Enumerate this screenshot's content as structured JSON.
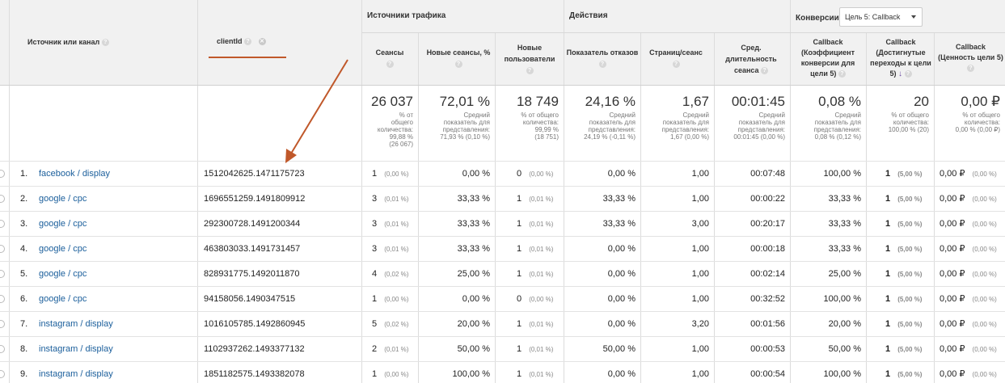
{
  "header": {
    "dim1": "Источник или канал",
    "dim2": "clientId",
    "group_traffic": "Источники трафика",
    "group_actions": "Действия",
    "group_conversions": "Конверсии",
    "goal_select": "Цель 5: Callback",
    "help": "?",
    "col_sessions": "Сеансы",
    "col_new_sessions": "Новые сеансы, %",
    "col_new_users": "Новые пользователи",
    "col_bounce": "Показатель отказов",
    "col_pages": "Страниц/сеанс",
    "col_duration": "Сред. длительность сеанса",
    "col_cb_rate": "Callback (Коэффициент конверсии для цели 5)",
    "col_cb_completions": "Callback (Достигнутые переходы к цели 5)",
    "col_cb_value": "Callback (Ценность цели 5)"
  },
  "totals": [
    {
      "main": "26 037",
      "sub": [
        "% от",
        "общего",
        "количества:",
        "99,88 %",
        "(26 067)"
      ]
    },
    {
      "main": "72,01 %",
      "sub": [
        "Средний",
        "показатель для",
        "представления:",
        "71,93 % (0,10 %)"
      ]
    },
    {
      "main": "18 749",
      "sub": [
        "% от общего",
        "количества:",
        "99,99 %",
        "(18 751)"
      ]
    },
    {
      "main": "24,16 %",
      "sub": [
        "Средний",
        "показатель для",
        "представления:",
        "24,19 % (-0,11 %)"
      ]
    },
    {
      "main": "1,67",
      "sub": [
        "Средний",
        "показатель для",
        "представления:",
        "1,67 (0,00 %)"
      ]
    },
    {
      "main": "00:01:45",
      "sub": [
        "Средний",
        "показатель для",
        "представления:",
        "00:01:45 (0,00 %)"
      ]
    },
    {
      "main": "0,08 %",
      "sub": [
        "Средний",
        "показатель для",
        "представления:",
        "0,08 % (0,12 %)"
      ]
    },
    {
      "main": "20",
      "sub": [
        "% от общего",
        "количества:",
        "100,00 % (20)"
      ]
    },
    {
      "main": "0,00 ₽",
      "sub": [
        "% от общего",
        "количества:",
        "0,00 % (0,00 ₽)"
      ]
    }
  ],
  "rows": [
    {
      "n": "1.",
      "source": "facebook / display",
      "client": "1512042625.1471175723",
      "sessions": "1",
      "sessions_pct": "(0,00 %)",
      "new_sess": "0,00 %",
      "new_users": "0",
      "new_users_pct": "(0,00 %)",
      "bounce": "0,00 %",
      "pages": "1,00",
      "duration": "00:07:48",
      "cb_rate": "100,00 %",
      "cb": "1",
      "cb_pct": "(5,00 %)",
      "val": "0,00 ₽",
      "val_pct": "(0,00 %)"
    },
    {
      "n": "2.",
      "source": "google / cpc",
      "client": "1696551259.1491809912",
      "sessions": "3",
      "sessions_pct": "(0,01 %)",
      "new_sess": "33,33 %",
      "new_users": "1",
      "new_users_pct": "(0,01 %)",
      "bounce": "33,33 %",
      "pages": "1,00",
      "duration": "00:00:22",
      "cb_rate": "33,33 %",
      "cb": "1",
      "cb_pct": "(5,00 %)",
      "val": "0,00 ₽",
      "val_pct": "(0,00 %)"
    },
    {
      "n": "3.",
      "source": "google / cpc",
      "client": "292300728.1491200344",
      "sessions": "3",
      "sessions_pct": "(0,01 %)",
      "new_sess": "33,33 %",
      "new_users": "1",
      "new_users_pct": "(0,01 %)",
      "bounce": "33,33 %",
      "pages": "3,00",
      "duration": "00:20:17",
      "cb_rate": "33,33 %",
      "cb": "1",
      "cb_pct": "(5,00 %)",
      "val": "0,00 ₽",
      "val_pct": "(0,00 %)"
    },
    {
      "n": "4.",
      "source": "google / cpc",
      "client": "463803033.1491731457",
      "sessions": "3",
      "sessions_pct": "(0,01 %)",
      "new_sess": "33,33 %",
      "new_users": "1",
      "new_users_pct": "(0,01 %)",
      "bounce": "0,00 %",
      "pages": "1,00",
      "duration": "00:00:18",
      "cb_rate": "33,33 %",
      "cb": "1",
      "cb_pct": "(5,00 %)",
      "val": "0,00 ₽",
      "val_pct": "(0,00 %)"
    },
    {
      "n": "5.",
      "source": "google / cpc",
      "client": "828931775.1492011870",
      "sessions": "4",
      "sessions_pct": "(0,02 %)",
      "new_sess": "25,00 %",
      "new_users": "1",
      "new_users_pct": "(0,01 %)",
      "bounce": "0,00 %",
      "pages": "1,00",
      "duration": "00:02:14",
      "cb_rate": "25,00 %",
      "cb": "1",
      "cb_pct": "(5,00 %)",
      "val": "0,00 ₽",
      "val_pct": "(0,00 %)"
    },
    {
      "n": "6.",
      "source": "google / cpc",
      "client": "94158056.1490347515",
      "sessions": "1",
      "sessions_pct": "(0,00 %)",
      "new_sess": "0,00 %",
      "new_users": "0",
      "new_users_pct": "(0,00 %)",
      "bounce": "0,00 %",
      "pages": "1,00",
      "duration": "00:32:52",
      "cb_rate": "100,00 %",
      "cb": "1",
      "cb_pct": "(5,00 %)",
      "val": "0,00 ₽",
      "val_pct": "(0,00 %)"
    },
    {
      "n": "7.",
      "source": "instagram / display",
      "client": "1016105785.1492860945",
      "sessions": "5",
      "sessions_pct": "(0,02 %)",
      "new_sess": "20,00 %",
      "new_users": "1",
      "new_users_pct": "(0,01 %)",
      "bounce": "0,00 %",
      "pages": "3,20",
      "duration": "00:01:56",
      "cb_rate": "20,00 %",
      "cb": "1",
      "cb_pct": "(5,00 %)",
      "val": "0,00 ₽",
      "val_pct": "(0,00 %)"
    },
    {
      "n": "8.",
      "source": "instagram / display",
      "client": "1102937262.1493377132",
      "sessions": "2",
      "sessions_pct": "(0,01 %)",
      "new_sess": "50,00 %",
      "new_users": "1",
      "new_users_pct": "(0,01 %)",
      "bounce": "50,00 %",
      "pages": "1,00",
      "duration": "00:00:53",
      "cb_rate": "50,00 %",
      "cb": "1",
      "cb_pct": "(5,00 %)",
      "val": "0,00 ₽",
      "val_pct": "(0,00 %)"
    },
    {
      "n": "9.",
      "source": "instagram / display",
      "client": "1851182575.1493382078",
      "sessions": "1",
      "sessions_pct": "(0,00 %)",
      "new_sess": "100,00 %",
      "new_users": "1",
      "new_users_pct": "(0,01 %)",
      "bounce": "0,00 %",
      "pages": "1,00",
      "duration": "00:00:54",
      "cb_rate": "100,00 %",
      "cb": "1",
      "cb_pct": "(5,00 %)",
      "val": "0,00 ₽",
      "val_pct": "(0,00 %)"
    }
  ]
}
